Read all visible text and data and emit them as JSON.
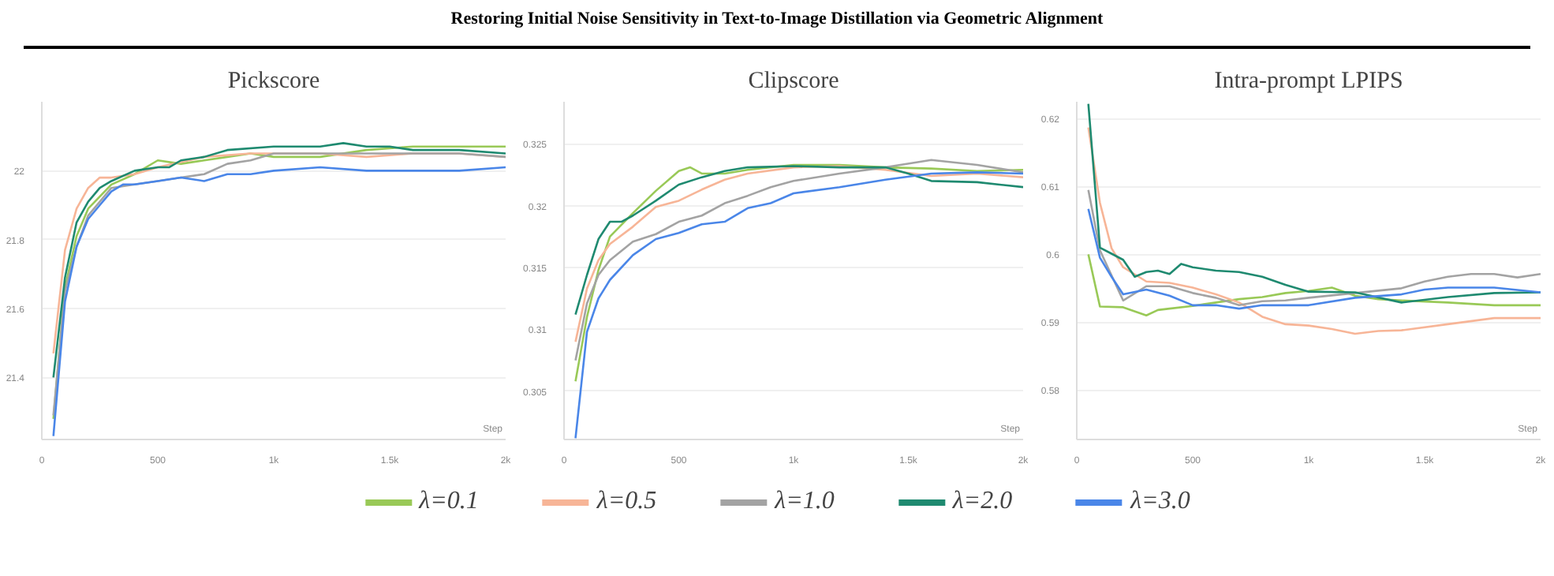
{
  "chart_data": [
    {
      "type": "line",
      "title": "Pickscore",
      "annotations": [
        "Restoring Initial Noise Sensitivity in Text-to-Image Distillation via Geometric Alignment"
      ],
      "xlabel": "Step",
      "xlim": [
        0,
        2000
      ],
      "ylim": [
        21.22,
        22.2
      ],
      "xticks": [
        0,
        500,
        {
          "value": 1000,
          "label": "1k"
        },
        {
          "value": 1500,
          "label": "1.5k"
        },
        {
          "value": 2000,
          "label": "2k"
        }
      ],
      "yticks": [
        21.4,
        21.6,
        21.8,
        22
      ],
      "grid": "y",
      "legend": "bottom",
      "series": [
        {
          "name": "λ=0.1",
          "color": "#99c957",
          "x": [
            50,
            100,
            150,
            200,
            300,
            400,
            500,
            600,
            700,
            800,
            900,
            1000,
            1200,
            1400,
            1600,
            1800,
            2000
          ],
          "values": [
            21.28,
            21.66,
            21.81,
            21.89,
            21.96,
            21.99,
            22.03,
            22.02,
            22.03,
            22.04,
            22.05,
            22.04,
            22.04,
            22.06,
            22.07,
            22.07,
            22.07
          ]
        },
        {
          "name": "λ=0.5",
          "color": "#f7b597",
          "x": [
            50,
            100,
            150,
            200,
            250,
            300,
            400,
            500,
            700,
            900,
            1000,
            1200,
            1400,
            1600,
            1800,
            2000
          ],
          "values": [
            21.47,
            21.77,
            21.89,
            21.95,
            21.98,
            21.98,
            21.99,
            22.01,
            22.04,
            22.05,
            22.05,
            22.05,
            22.04,
            22.05,
            22.05,
            22.04
          ]
        },
        {
          "name": "λ=1.0",
          "color": "#a3a3a3",
          "x": [
            50,
            100,
            150,
            200,
            300,
            400,
            500,
            600,
            700,
            800,
            900,
            1000,
            1200,
            1400,
            1600,
            1800,
            2000
          ],
          "values": [
            21.29,
            21.65,
            21.78,
            21.87,
            21.95,
            21.96,
            21.97,
            21.98,
            21.99,
            22.02,
            22.03,
            22.05,
            22.05,
            22.05,
            22.05,
            22.05,
            22.04
          ]
        },
        {
          "name": "λ=2.0",
          "color": "#1f8a70",
          "x": [
            50,
            100,
            150,
            200,
            250,
            300,
            400,
            500,
            550,
            600,
            700,
            800,
            1000,
            1100,
            1200,
            1300,
            1400,
            1500,
            1600,
            1800,
            2000
          ],
          "values": [
            21.4,
            21.69,
            21.85,
            21.91,
            21.95,
            21.97,
            22.0,
            22.01,
            22.01,
            22.03,
            22.04,
            22.06,
            22.07,
            22.07,
            22.07,
            22.08,
            22.07,
            22.07,
            22.06,
            22.06,
            22.05
          ]
        },
        {
          "name": "λ=3.0",
          "color": "#4a86e8",
          "x": [
            50,
            100,
            150,
            200,
            250,
            300,
            350,
            400,
            500,
            600,
            700,
            800,
            900,
            1000,
            1200,
            1400,
            1600,
            1800,
            2000
          ],
          "values": [
            21.23,
            21.62,
            21.78,
            21.86,
            21.9,
            21.94,
            21.96,
            21.96,
            21.97,
            21.98,
            21.97,
            21.99,
            21.99,
            22.0,
            22.01,
            22.0,
            22.0,
            22.0,
            22.01
          ]
        }
      ]
    },
    {
      "type": "line",
      "title": "Clipscore",
      "xlabel": "Step",
      "xlim": [
        0,
        2000
      ],
      "ylim": [
        0.3011,
        0.3284
      ],
      "xticks": [
        0,
        500,
        {
          "value": 1000,
          "label": "1k"
        },
        {
          "value": 1500,
          "label": "1.5k"
        },
        {
          "value": 2000,
          "label": "2k"
        }
      ],
      "yticks": [
        0.305,
        0.31,
        0.315,
        0.32,
        0.325
      ],
      "grid": "y",
      "series": [
        {
          "color": "#99c957",
          "x": [
            50,
            100,
            150,
            200,
            300,
            400,
            500,
            550,
            600,
            700,
            800,
            1000,
            1200,
            1400,
            1600,
            1800,
            2000
          ],
          "values": [
            0.3058,
            0.311,
            0.3148,
            0.3175,
            0.3194,
            0.3212,
            0.3228,
            0.3231,
            0.3226,
            0.3226,
            0.3229,
            0.3233,
            0.3233,
            0.3231,
            0.323,
            0.3228,
            0.3229
          ]
        },
        {
          "color": "#f7b597",
          "x": [
            50,
            100,
            150,
            200,
            300,
            400,
            500,
            600,
            700,
            800,
            1000,
            1200,
            1400,
            1600,
            1800,
            2000
          ],
          "values": [
            0.309,
            0.3133,
            0.3156,
            0.3169,
            0.3183,
            0.3199,
            0.3204,
            0.3213,
            0.3221,
            0.3226,
            0.3231,
            0.3232,
            0.3229,
            0.3224,
            0.3226,
            0.3223
          ]
        },
        {
          "color": "#a3a3a3",
          "x": [
            50,
            100,
            150,
            200,
            300,
            400,
            500,
            600,
            700,
            800,
            900,
            1000,
            1200,
            1400,
            1600,
            1800,
            2000
          ],
          "values": [
            0.3075,
            0.3121,
            0.3144,
            0.3156,
            0.3171,
            0.3177,
            0.3187,
            0.3192,
            0.3202,
            0.3208,
            0.3215,
            0.322,
            0.3226,
            0.3231,
            0.3237,
            0.3233,
            0.3227
          ]
        },
        {
          "color": "#1f8a70",
          "x": [
            50,
            100,
            150,
            200,
            250,
            300,
            400,
            500,
            600,
            700,
            800,
            1000,
            1200,
            1400,
            1500,
            1600,
            1800,
            2000
          ],
          "values": [
            0.3112,
            0.3144,
            0.3173,
            0.3187,
            0.3187,
            0.3192,
            0.3204,
            0.3217,
            0.3223,
            0.3228,
            0.3231,
            0.3232,
            0.3231,
            0.3231,
            0.3226,
            0.322,
            0.3219,
            0.3215
          ]
        },
        {
          "color": "#4a86e8",
          "x": [
            50,
            100,
            150,
            200,
            300,
            400,
            500,
            600,
            700,
            800,
            900,
            1000,
            1200,
            1400,
            1600,
            1800,
            2000
          ],
          "values": [
            0.3012,
            0.3098,
            0.3125,
            0.314,
            0.316,
            0.3173,
            0.3178,
            0.3185,
            0.3187,
            0.3198,
            0.3202,
            0.321,
            0.3215,
            0.3221,
            0.3226,
            0.3227,
            0.3226
          ]
        }
      ]
    },
    {
      "type": "line",
      "title": "Intra-prompt LPIPS",
      "xlabel": "Step",
      "xlim": [
        0,
        2000
      ],
      "ylim": [
        0.5727,
        0.6225
      ],
      "xticks": [
        0,
        500,
        {
          "value": 1000,
          "label": "1k"
        },
        {
          "value": 1500,
          "label": "1.5k"
        },
        {
          "value": 2000,
          "label": "2k"
        }
      ],
      "yticks": [
        0.58,
        0.59,
        0.6,
        0.61,
        0.62
      ],
      "grid": "y",
      "series": [
        {
          "color": "#99c957",
          "x": [
            50,
            100,
            200,
            300,
            350,
            400,
            500,
            600,
            700,
            800,
            900,
            1000,
            1100,
            1200,
            1300,
            1400,
            1600,
            1800,
            2000
          ],
          "values": [
            0.6,
            0.5923,
            0.5922,
            0.591,
            0.5918,
            0.592,
            0.5924,
            0.5929,
            0.5934,
            0.5937,
            0.5943,
            0.5946,
            0.5951,
            0.5939,
            0.5934,
            0.5932,
            0.5929,
            0.5925,
            0.5925
          ]
        },
        {
          "color": "#f7b597",
          "x": [
            50,
            100,
            150,
            200,
            300,
            400,
            500,
            600,
            700,
            800,
            900,
            1000,
            1100,
            1200,
            1300,
            1400,
            1600,
            1800,
            2000
          ],
          "values": [
            0.6187,
            0.6076,
            0.6009,
            0.5981,
            0.596,
            0.5958,
            0.5951,
            0.5941,
            0.5929,
            0.5908,
            0.5897,
            0.5895,
            0.589,
            0.5883,
            0.5887,
            0.5888,
            0.5897,
            0.5906,
            0.5906
          ]
        },
        {
          "color": "#a3a3a3",
          "x": [
            50,
            100,
            200,
            300,
            400,
            500,
            600,
            700,
            800,
            900,
            1000,
            1200,
            1400,
            1500,
            1600,
            1700,
            1800,
            1900,
            2000
          ],
          "values": [
            0.6095,
            0.6006,
            0.5932,
            0.5953,
            0.5953,
            0.5943,
            0.5936,
            0.5925,
            0.5931,
            0.5932,
            0.5936,
            0.5943,
            0.595,
            0.596,
            0.5967,
            0.5971,
            0.5971,
            0.5966,
            0.5971
          ]
        },
        {
          "color": "#1f8a70",
          "x": [
            50,
            100,
            150,
            200,
            250,
            300,
            350,
            400,
            450,
            500,
            600,
            700,
            800,
            900,
            1000,
            1200,
            1400,
            1600,
            1800,
            2000
          ],
          "values": [
            0.6222,
            0.601,
            0.6001,
            0.5992,
            0.5967,
            0.5974,
            0.5976,
            0.5971,
            0.5986,
            0.5981,
            0.5976,
            0.5974,
            0.5967,
            0.5955,
            0.5945,
            0.5944,
            0.5929,
            0.5937,
            0.5943,
            0.5944
          ]
        },
        {
          "color": "#4a86e8",
          "x": [
            50,
            100,
            150,
            200,
            300,
            400,
            500,
            600,
            700,
            800,
            1000,
            1200,
            1400,
            1500,
            1600,
            1800,
            2000
          ],
          "values": [
            0.6067,
            0.5995,
            0.5967,
            0.5941,
            0.5948,
            0.5939,
            0.5925,
            0.5925,
            0.592,
            0.5925,
            0.5925,
            0.5936,
            0.5941,
            0.5948,
            0.5951,
            0.5951,
            0.5944
          ]
        }
      ]
    }
  ]
}
